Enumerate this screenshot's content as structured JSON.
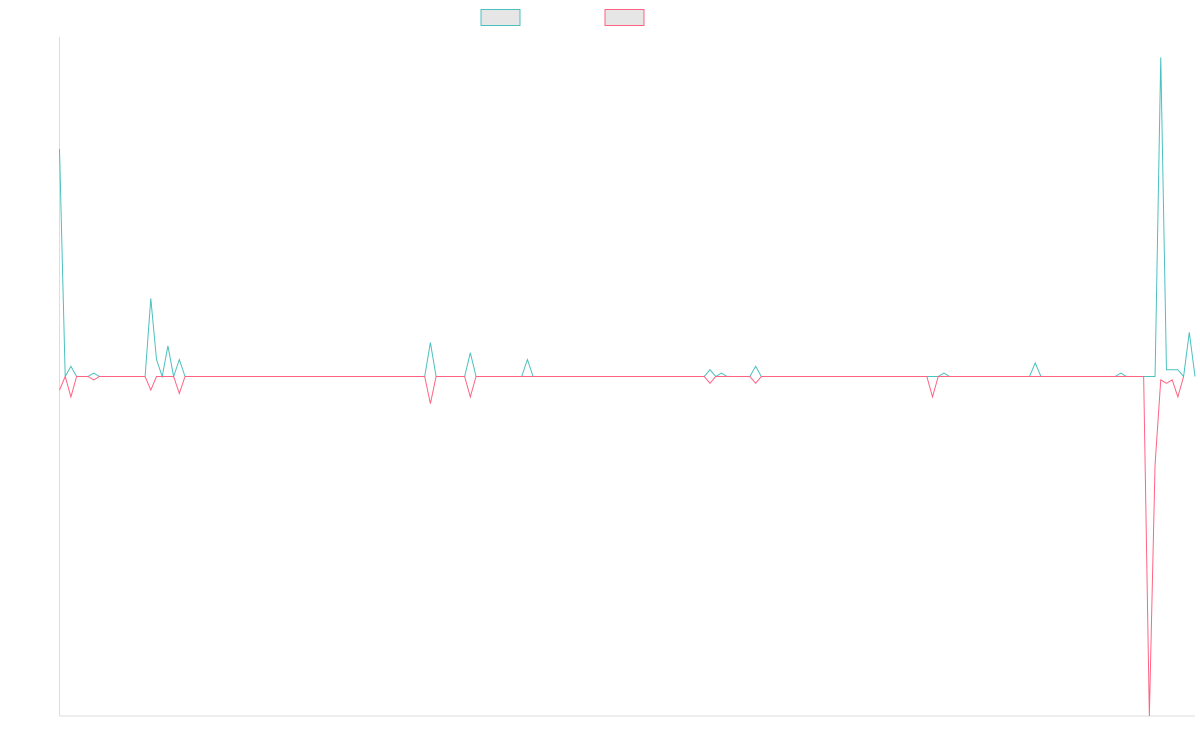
{
  "chart_data": {
    "type": "line",
    "title": "",
    "xlabel": "",
    "ylabel": "",
    "grid": false,
    "legend": "top-center",
    "ylim": [
      -1.0,
      1.0
    ],
    "series": [
      {
        "name": "",
        "color": "#4bc0c0",
        "fill": "#e6e6e6",
        "values": [
          0.67,
          0,
          0.03,
          0,
          0,
          0,
          0.01,
          0,
          0,
          0,
          0,
          0,
          0,
          0,
          0,
          0,
          0.23,
          0.05,
          0,
          0.09,
          0,
          0.05,
          0,
          0,
          0,
          0,
          0,
          0,
          0,
          0,
          0,
          0,
          0,
          0,
          0,
          0,
          0,
          0,
          0,
          0,
          0,
          0,
          0,
          0,
          0,
          0,
          0,
          0,
          0,
          0,
          0,
          0,
          0,
          0,
          0,
          0,
          0,
          0,
          0,
          0,
          0,
          0,
          0,
          0,
          0,
          0.1,
          0,
          0,
          0,
          0,
          0,
          0,
          0.07,
          0,
          0,
          0,
          0,
          0,
          0,
          0,
          0,
          0,
          0.05,
          0,
          0,
          0,
          0,
          0,
          0,
          0,
          0,
          0,
          0,
          0,
          0,
          0,
          0,
          0,
          0,
          0,
          0,
          0,
          0,
          0,
          0,
          0,
          0,
          0,
          0,
          0,
          0,
          0,
          0,
          0,
          0.02,
          0,
          0.01,
          0,
          0,
          0,
          0,
          0,
          0.03,
          0,
          0,
          0,
          0,
          0,
          0,
          0,
          0,
          0,
          0,
          0,
          0,
          0,
          0,
          0,
          0,
          0,
          0,
          0,
          0,
          0,
          0,
          0,
          0,
          0,
          0,
          0,
          0,
          0,
          0,
          0,
          0,
          0.01,
          0,
          0,
          0,
          0,
          0,
          0,
          0,
          0,
          0,
          0,
          0,
          0,
          0,
          0,
          0,
          0.04,
          0,
          0,
          0,
          0,
          0,
          0,
          0,
          0,
          0,
          0,
          0,
          0,
          0,
          0,
          0.01,
          0,
          0,
          0,
          0,
          0,
          0,
          0.94,
          0.02,
          0.02,
          0.02,
          0,
          0.13,
          0
        ]
      },
      {
        "name": "",
        "color": "#ff6384",
        "fill": "#e6e6e6",
        "values": [
          -0.04,
          0,
          -0.06,
          0,
          0,
          0,
          -0.01,
          0,
          0,
          0,
          0,
          0,
          0,
          0,
          0,
          0,
          -0.04,
          0,
          0,
          0,
          0,
          -0.05,
          0,
          0,
          0,
          0,
          0,
          0,
          0,
          0,
          0,
          0,
          0,
          0,
          0,
          0,
          0,
          0,
          0,
          0,
          0,
          0,
          0,
          0,
          0,
          0,
          0,
          0,
          0,
          0,
          0,
          0,
          0,
          0,
          0,
          0,
          0,
          0,
          0,
          0,
          0,
          0,
          0,
          0,
          0,
          -0.08,
          0,
          0,
          0,
          0,
          0,
          0,
          -0.06,
          0,
          0,
          0,
          0,
          0,
          0,
          0,
          0,
          0,
          0,
          0,
          0,
          0,
          0,
          0,
          0,
          0,
          0,
          0,
          0,
          0,
          0,
          0,
          0,
          0,
          0,
          0,
          0,
          0,
          0,
          0,
          0,
          0,
          0,
          0,
          0,
          0,
          0,
          0,
          0,
          0,
          -0.02,
          0,
          0,
          0,
          0,
          0,
          0,
          0,
          -0.02,
          0,
          0,
          0,
          0,
          0,
          0,
          0,
          0,
          0,
          0,
          0,
          0,
          0,
          0,
          0,
          0,
          0,
          0,
          0,
          0,
          0,
          0,
          0,
          0,
          0,
          0,
          0,
          0,
          0,
          0,
          -0.06,
          0,
          0,
          0,
          0,
          0,
          0,
          0,
          0,
          0,
          0,
          0,
          0,
          0,
          0,
          0,
          0,
          0,
          0,
          0,
          0,
          0,
          0,
          0,
          0,
          0,
          0,
          0,
          0,
          0,
          0,
          0,
          0,
          0,
          0,
          0,
          0,
          0,
          -1.0,
          -0.26,
          -0.01,
          -0.02,
          -0.01,
          -0.06,
          0
        ]
      }
    ]
  }
}
